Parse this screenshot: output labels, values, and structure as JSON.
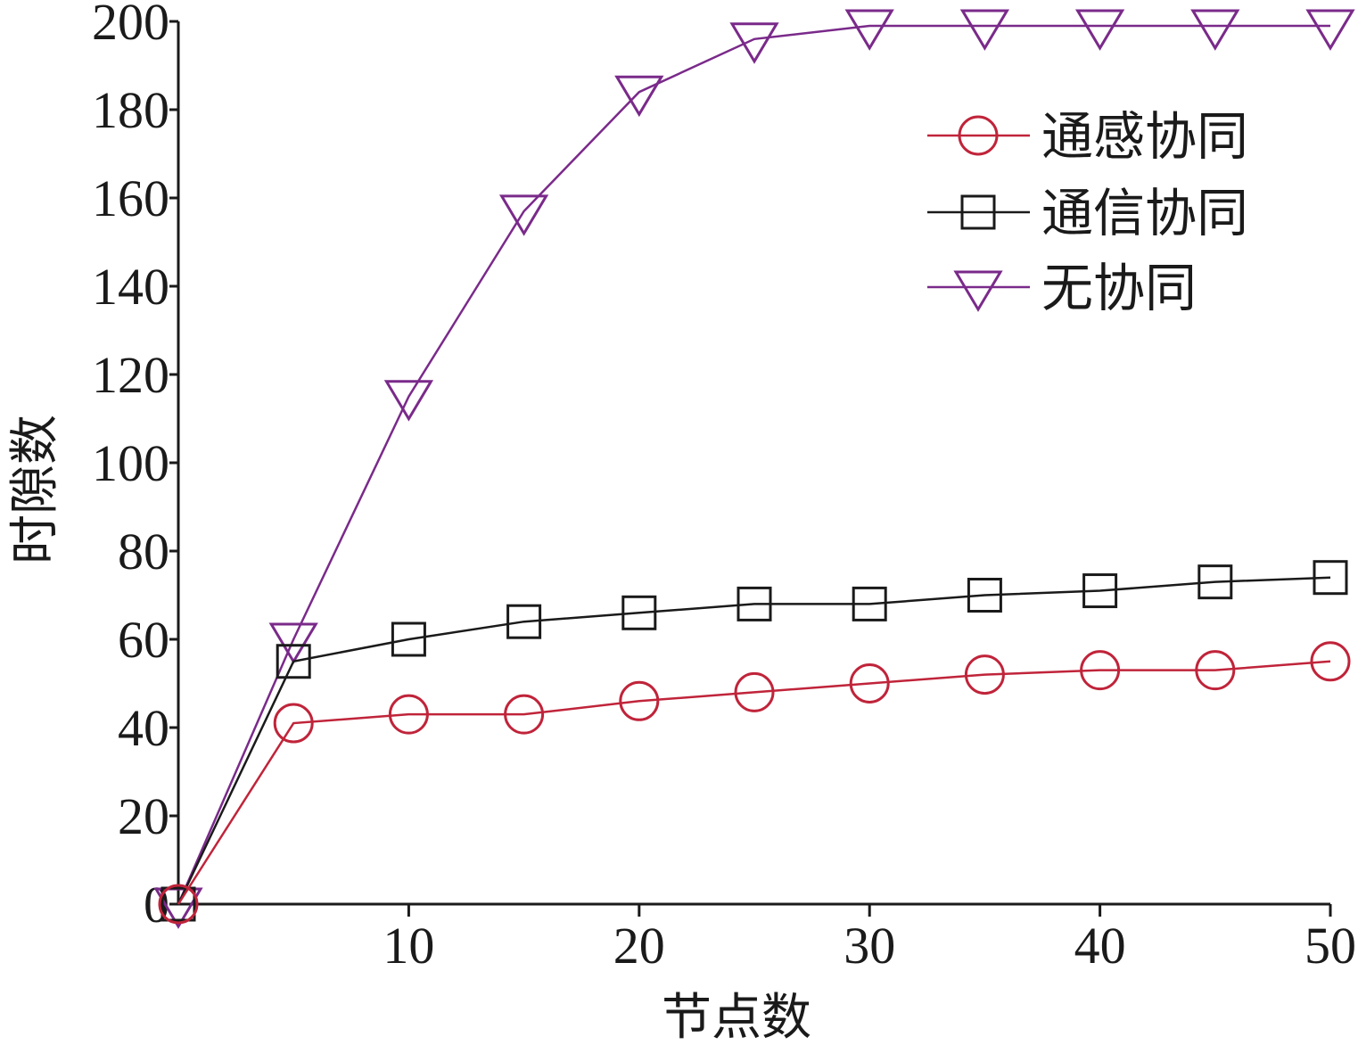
{
  "chart_data": {
    "type": "line",
    "xlabel": "节点数",
    "ylabel": "时隙数",
    "xlim": [
      0,
      50
    ],
    "ylim": [
      0,
      200
    ],
    "xticks": [
      10,
      20,
      30,
      40,
      50
    ],
    "yticks": [
      0,
      20,
      40,
      60,
      80,
      100,
      120,
      140,
      160,
      180,
      200
    ],
    "grid": false,
    "legend_position": "top-right",
    "x": [
      0,
      5,
      10,
      15,
      20,
      25,
      30,
      35,
      40,
      45,
      50
    ],
    "series": [
      {
        "name": "通感协同",
        "marker": "circle",
        "color": "#c0243a",
        "values": [
          0,
          41,
          43,
          43,
          46,
          48,
          50,
          52,
          53,
          53,
          55
        ]
      },
      {
        "name": "通信协同",
        "marker": "square",
        "color": "#1a1a1a",
        "values": [
          0,
          55,
          60,
          64,
          66,
          68,
          68,
          70,
          71,
          73,
          74
        ]
      },
      {
        "name": "无协同",
        "marker": "triangle-down",
        "color": "#7a2a8a",
        "values": [
          0,
          60,
          115,
          157,
          184,
          196,
          199,
          199,
          199,
          199,
          199
        ]
      }
    ]
  }
}
